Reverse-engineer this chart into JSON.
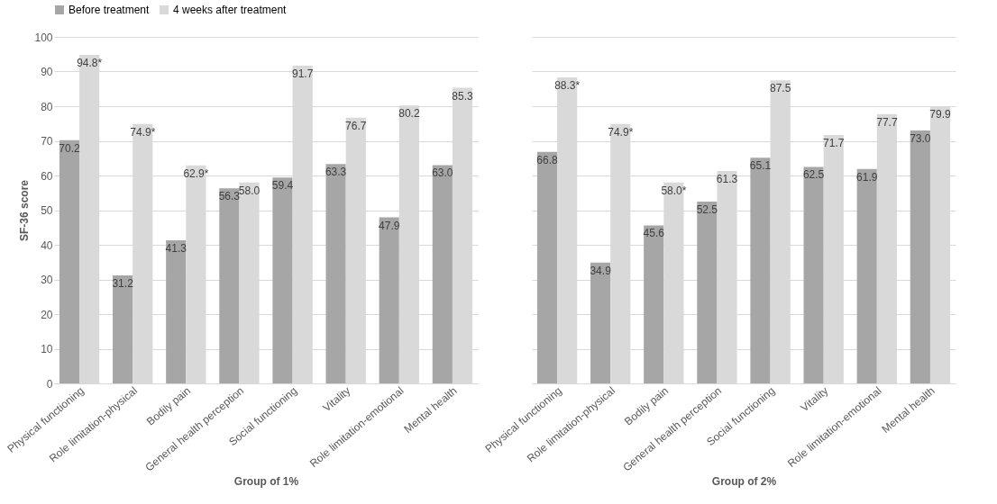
{
  "chart_data": [
    {
      "type": "bar",
      "xlabel": "Group of 1%",
      "ylabel": "SF-36 score",
      "categories": [
        "Physical functioning",
        "Role limitation-physical",
        "Bodily pain",
        "General health perception",
        "Social functioning",
        "Vitality",
        "Role limitation-emotional",
        "Mental health"
      ],
      "series": [
        {
          "name": "Before treatment",
          "color": "#a6a6a6",
          "values": [
            70.2,
            31.2,
            41.3,
            56.3,
            59.4,
            63.3,
            47.9,
            63.0
          ],
          "value_labels": [
            "70.2",
            "31.2",
            "41.3",
            "56.3",
            "59.4",
            "63.3",
            "47.9",
            "63.0"
          ]
        },
        {
          "name": "4 weeks after treatment",
          "color": "#d9d9d9",
          "values": [
            94.8,
            74.9,
            62.9,
            58.0,
            91.7,
            76.7,
            80.2,
            85.3
          ],
          "value_labels": [
            "94.8*",
            "74.9*",
            "62.9*",
            "58.0",
            "91.7",
            "76.7",
            "80.2",
            "85.3"
          ]
        }
      ],
      "ylim": [
        0,
        100
      ],
      "yticks": [
        0,
        10,
        20,
        30,
        40,
        50,
        60,
        70,
        80,
        90,
        100
      ],
      "grid": "y",
      "legend": "top"
    },
    {
      "type": "bar",
      "xlabel": "Group of 2%",
      "categories": [
        "Physical functioning",
        "Role limitation-physical",
        "Bodily pain",
        "General health perception",
        "Social functioning",
        "Vitality",
        "Role limitation-emotional",
        "Mental health"
      ],
      "series": [
        {
          "name": "Before treatment",
          "color": "#a6a6a6",
          "values": [
            66.8,
            34.9,
            45.6,
            52.5,
            65.1,
            62.5,
            61.9,
            73.0
          ],
          "value_labels": [
            "66.8",
            "34.9",
            "45.6",
            "52.5",
            "65.1",
            "62.5",
            "61.9",
            "73.0"
          ]
        },
        {
          "name": "4 weeks after treatment",
          "color": "#d9d9d9",
          "values": [
            88.3,
            74.9,
            58.0,
            61.3,
            87.5,
            71.7,
            77.7,
            79.9
          ],
          "value_labels": [
            "88.3*",
            "74.9*",
            "58.0*",
            "61.3",
            "87.5",
            "71.7",
            "77.7",
            "79.9"
          ]
        }
      ],
      "ylim": [
        0,
        100
      ],
      "yticks": [
        0,
        10,
        20,
        30,
        40,
        50,
        60,
        70,
        80,
        90,
        100
      ],
      "grid": "y",
      "tick_labels": "x"
    }
  ]
}
